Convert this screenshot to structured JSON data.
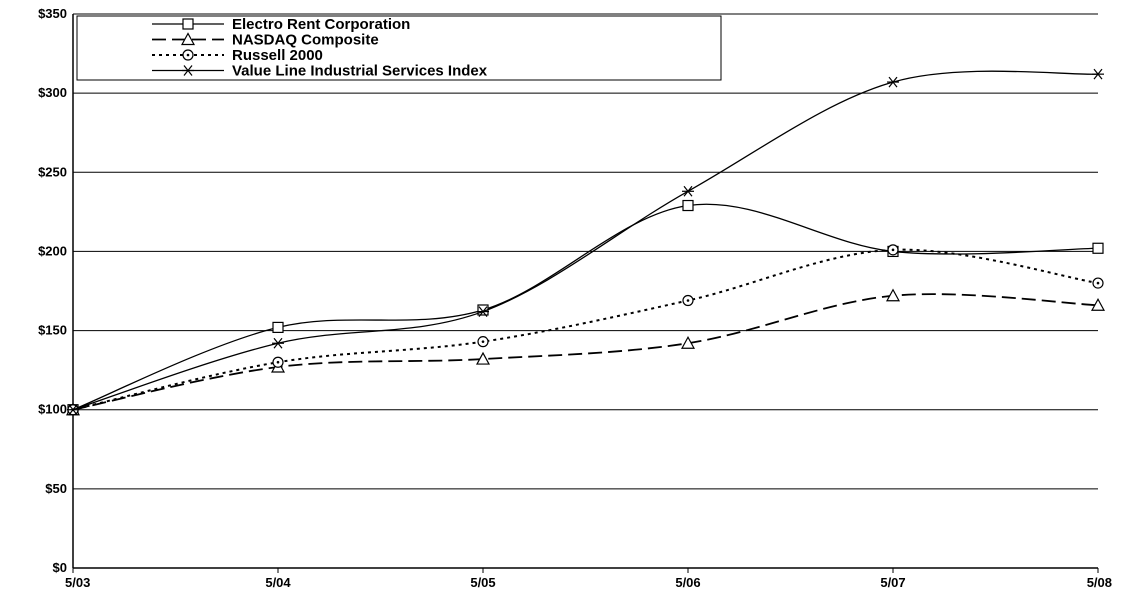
{
  "chart_data": {
    "type": "line",
    "title": "",
    "xlabel": "",
    "ylabel": "",
    "categories": [
      "5/03",
      "5/04",
      "5/05",
      "5/06",
      "5/07",
      "5/08"
    ],
    "ylim": [
      0,
      350
    ],
    "y_ticks": [
      "$0",
      "$50",
      "$100",
      "$150",
      "$200",
      "$250",
      "$300",
      "$350"
    ],
    "grid": true,
    "legend_placement": "top-left",
    "series": [
      {
        "name": "Electro Rent Corporation",
        "values": [
          100,
          152,
          163,
          229,
          200,
          202
        ],
        "marker": "square",
        "dash": "solid",
        "color": "#000000"
      },
      {
        "name": "NASDAQ Composite",
        "values": [
          100,
          127,
          132,
          142,
          172,
          166
        ],
        "marker": "triangle",
        "dash": "long-dash",
        "color": "#000000"
      },
      {
        "name": "Russell 2000",
        "values": [
          100,
          130,
          143,
          169,
          201,
          180
        ],
        "marker": "circle-dot",
        "dash": "dotted",
        "color": "#000000"
      },
      {
        "name": "Value Line Industrial Services Index",
        "values": [
          100,
          142,
          162,
          238,
          307,
          312
        ],
        "marker": "asterisk",
        "dash": "solid",
        "color": "#000000"
      }
    ]
  }
}
